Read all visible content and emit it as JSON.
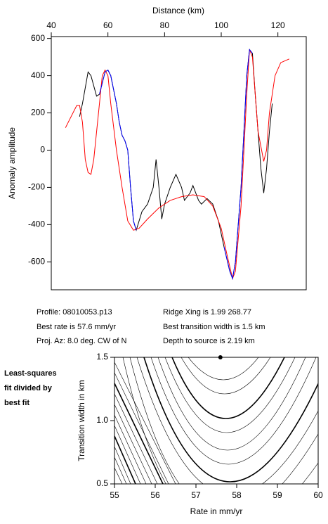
{
  "chart_data": [
    {
      "type": "line",
      "x_label": "Distance (km)",
      "y_label": "Anomaly amplitude",
      "xlim": [
        40,
        130
      ],
      "xticks": [
        40,
        60,
        80,
        100,
        120
      ],
      "ylim": [
        -750,
        610
      ],
      "yticks": [
        -600,
        -400,
        -200,
        0,
        200,
        400,
        600
      ],
      "series": [
        {
          "color": "#000000",
          "x": [
            50,
            51,
            53,
            54,
            56,
            57,
            59,
            60,
            61,
            63,
            64,
            65,
            66,
            67,
            68,
            69,
            70,
            72,
            74,
            76,
            77,
            78,
            79,
            80,
            82,
            84,
            86,
            87,
            89,
            90,
            92,
            93,
            95,
            97,
            99,
            101,
            103,
            104,
            105,
            107,
            108,
            109,
            110,
            111,
            112,
            113,
            114,
            115,
            116,
            117,
            118
          ],
          "values": [
            180,
            250,
            420,
            400,
            290,
            300,
            420,
            430,
            400,
            250,
            150,
            80,
            50,
            0,
            -200,
            -380,
            -430,
            -330,
            -290,
            -200,
            -50,
            -200,
            -370,
            -290,
            -200,
            -130,
            -200,
            -270,
            -230,
            -190,
            -270,
            -290,
            -260,
            -290,
            -380,
            -520,
            -650,
            -690,
            -600,
            -200,
            100,
            400,
            540,
            520,
            300,
            100,
            -100,
            -230,
            -100,
            100,
            250
          ]
        },
        {
          "color": "#ff0000",
          "x": [
            45,
            47,
            49,
            50,
            51,
            52,
            53,
            54,
            55,
            57,
            58,
            59,
            60,
            61,
            63,
            65,
            67,
            69,
            71,
            74,
            78,
            82,
            86,
            90,
            94,
            97,
            100,
            102,
            104,
            105,
            107,
            108,
            109,
            110,
            111,
            112,
            113,
            115,
            116,
            117,
            119,
            121,
            124
          ],
          "values": [
            120,
            180,
            240,
            240,
            150,
            -50,
            -120,
            -130,
            -50,
            250,
            400,
            430,
            400,
            250,
            0,
            -200,
            -380,
            -430,
            -420,
            -370,
            -310,
            -270,
            -250,
            -240,
            -250,
            -300,
            -420,
            -560,
            -690,
            -650,
            -300,
            0,
            300,
            540,
            500,
            300,
            100,
            -60,
            0,
            200,
            400,
            470,
            490
          ]
        },
        {
          "color": "#0000ff",
          "x": [
            57,
            59,
            60,
            61,
            63,
            64,
            65,
            66,
            67,
            68,
            69,
            70,
            null,
            101,
            103,
            104,
            105,
            107,
            108,
            109,
            110,
            111
          ],
          "values": [
            300,
            420,
            430,
            400,
            250,
            150,
            80,
            50,
            0,
            -200,
            -380,
            -430,
            null,
            -520,
            -650,
            -690,
            -600,
            -200,
            100,
            400,
            540,
            520
          ]
        }
      ]
    },
    {
      "type": "scatter",
      "x_label": "Rate in mm/yr",
      "y_label": "Transition width in km",
      "xlim": [
        55,
        60
      ],
      "xticks": [
        55,
        56,
        57,
        58,
        59,
        60
      ],
      "ylim": [
        0.5,
        1.5
      ],
      "yticks": [
        0.5,
        {
          "value": 1.0,
          "label": "1.0"
        },
        1.5
      ],
      "point": {
        "x": 57.6,
        "y": 1.5
      },
      "color": "#000000"
    }
  ],
  "info": [
    "Profile: 08010053.p13",
    "Best rate is 57.6 mm/yr",
    "Proj. Az: 8.0 deg. CW of N",
    "Ridge Xing is 1.99 268.77",
    "Best transition width is 1.5 km",
    "Depth to source is  2.19 km"
  ],
  "side_label": [
    "Least-squares",
    "fit divided by",
    "best fit"
  ]
}
